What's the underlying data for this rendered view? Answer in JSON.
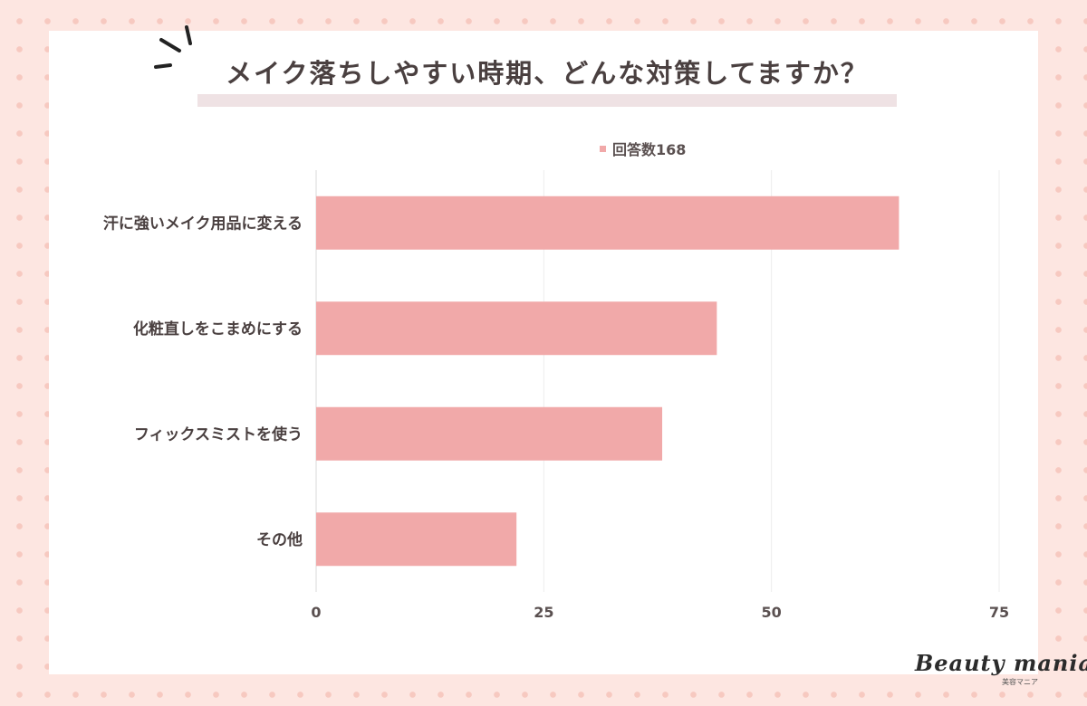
{
  "colors": {
    "bar": "#f1a9a9",
    "grid": "#ececec",
    "axis": "#d9d9d9",
    "card": "#ffffff",
    "page_bg": "#fde6e1",
    "dots": "#f7c9c0",
    "title_band": "#efe2e4",
    "text": "#4a4040"
  },
  "logo": {
    "main": "Beauty mania",
    "sub": "美容マニア"
  },
  "chart_data": {
    "type": "bar",
    "orientation": "horizontal",
    "title": "メイク落ちしやすい時期、どんな対策してますか？",
    "categories": [
      "汗に強いメイク用品に変える",
      "化粧直しをこまめにする",
      "フィックスミストを使う",
      "その他"
    ],
    "series": [
      {
        "name": "回答数168",
        "values": [
          64,
          44,
          38,
          22
        ]
      }
    ],
    "xlim": [
      0,
      75
    ],
    "xticks": [
      0,
      25,
      50,
      75
    ],
    "grid": true,
    "legend": "top-center"
  }
}
